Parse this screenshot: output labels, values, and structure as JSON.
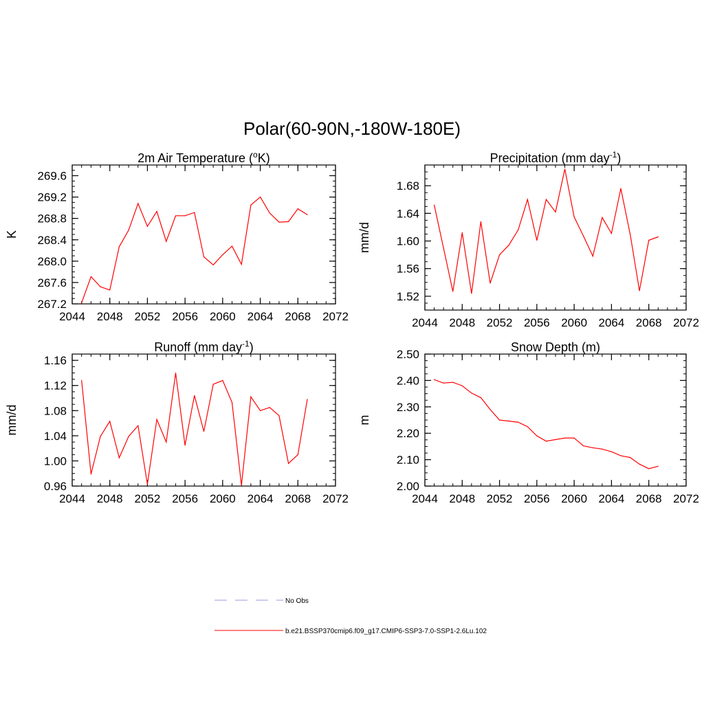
{
  "figure": {
    "title": "Polar(60-90N,-180W-180E)"
  },
  "chart_data": [
    {
      "type": "line",
      "title": "2m Air Temperature (°K)",
      "title_parts": {
        "pre": "2m Air Temperature (",
        "sup": "o",
        "post": "K)"
      },
      "ylabel": "K",
      "xlim": [
        2044,
        2072
      ],
      "ylim": [
        267.2,
        269.8
      ],
      "xticks": [
        2044,
        2048,
        2052,
        2056,
        2060,
        2064,
        2068,
        2072
      ],
      "xtick_labels": [
        "2044",
        "2048",
        "2052",
        "2056",
        "2060",
        "2064",
        "2068",
        "2072"
      ],
      "yticks": [
        267.2,
        267.6,
        268.0,
        268.4,
        268.8,
        269.2,
        269.6
      ],
      "ytick_labels": [
        "267.2",
        "267.6",
        "268.0",
        "268.4",
        "268.8",
        "269.2",
        "269.6"
      ],
      "color": "#ff0000",
      "x": [
        2045,
        2046,
        2047,
        2048,
        2049,
        2050,
        2051,
        2052,
        2053,
        2054,
        2055,
        2056,
        2057,
        2058,
        2059,
        2060,
        2061,
        2062,
        2063,
        2064,
        2065,
        2066,
        2067,
        2068,
        2069
      ],
      "y": [
        267.22,
        267.71,
        267.52,
        267.46,
        268.27,
        268.58,
        269.08,
        268.65,
        268.93,
        268.37,
        268.85,
        268.85,
        268.91,
        268.08,
        267.93,
        268.12,
        268.28,
        267.94,
        269.05,
        269.2,
        268.9,
        268.73,
        268.74,
        268.98,
        268.87
      ]
    },
    {
      "type": "line",
      "title": "Precipitation (mm day-1)",
      "title_parts": {
        "pre": "Precipitation (mm day",
        "sup": "-1",
        "post": ")"
      },
      "ylabel": "mm/d",
      "xlim": [
        2044,
        2072
      ],
      "ylim": [
        1.5,
        1.71
      ],
      "xticks": [
        2044,
        2048,
        2052,
        2056,
        2060,
        2064,
        2068,
        2072
      ],
      "xtick_labels": [
        "2044",
        "2048",
        "2052",
        "2056",
        "2060",
        "2064",
        "2068",
        "2072"
      ],
      "yticks": [
        1.52,
        1.56,
        1.6,
        1.64,
        1.68
      ],
      "ytick_labels": [
        "1.52",
        "1.56",
        "1.60",
        "1.64",
        "1.68"
      ],
      "color": "#ff0000",
      "x": [
        2045,
        2046,
        2047,
        2048,
        2049,
        2050,
        2051,
        2052,
        2053,
        2054,
        2055,
        2056,
        2057,
        2058,
        2059,
        2060,
        2061,
        2062,
        2063,
        2064,
        2065,
        2066,
        2067,
        2068,
        2069
      ],
      "y": [
        1.652,
        1.59,
        1.527,
        1.612,
        1.524,
        1.628,
        1.539,
        1.58,
        1.594,
        1.616,
        1.66,
        1.601,
        1.66,
        1.642,
        1.704,
        1.635,
        1.607,
        1.578,
        1.634,
        1.611,
        1.676,
        1.61,
        1.528,
        1.601,
        1.606
      ]
    },
    {
      "type": "line",
      "title": "Runoff (mm day-1)",
      "title_parts": {
        "pre": "Runoff (mm day",
        "sup": "-1",
        "post": ")"
      },
      "ylabel": "mm/d",
      "xlim": [
        2044,
        2072
      ],
      "ylim": [
        0.96,
        1.17
      ],
      "xticks": [
        2044,
        2048,
        2052,
        2056,
        2060,
        2064,
        2068,
        2072
      ],
      "xtick_labels": [
        "2044",
        "2048",
        "2052",
        "2056",
        "2060",
        "2064",
        "2068",
        "2072"
      ],
      "yticks": [
        0.96,
        1.0,
        1.04,
        1.08,
        1.12,
        1.16
      ],
      "ytick_labels": [
        "0.96",
        "1.00",
        "1.04",
        "1.08",
        "1.12",
        "1.16"
      ],
      "color": "#ff0000",
      "x": [
        2045,
        2046,
        2047,
        2048,
        2049,
        2050,
        2051,
        2052,
        2053,
        2054,
        2055,
        2056,
        2057,
        2058,
        2059,
        2060,
        2061,
        2062,
        2063,
        2064,
        2065,
        2066,
        2067,
        2068,
        2069
      ],
      "y": [
        1.128,
        0.979,
        1.039,
        1.063,
        1.005,
        1.039,
        1.056,
        0.963,
        1.066,
        1.03,
        1.14,
        1.025,
        1.104,
        1.047,
        1.122,
        1.128,
        1.093,
        0.961,
        1.102,
        1.08,
        1.085,
        1.072,
        0.996,
        1.01,
        1.098
      ]
    },
    {
      "type": "line",
      "title": "Snow Depth (m)",
      "title_parts": {
        "pre": "Snow Depth (m)",
        "sup": "",
        "post": ""
      },
      "ylabel": "m",
      "xlim": [
        2044,
        2072
      ],
      "ylim": [
        2.0,
        2.5
      ],
      "xticks": [
        2044,
        2048,
        2052,
        2056,
        2060,
        2064,
        2068,
        2072
      ],
      "xtick_labels": [
        "2044",
        "2048",
        "2052",
        "2056",
        "2060",
        "2064",
        "2068",
        "2072"
      ],
      "yticks": [
        2.0,
        2.1,
        2.2,
        2.3,
        2.4,
        2.5
      ],
      "ytick_labels": [
        "2.00",
        "2.10",
        "2.20",
        "2.30",
        "2.40",
        "2.50"
      ],
      "color": "#ff0000",
      "x": [
        2045,
        2046,
        2047,
        2048,
        2049,
        2050,
        2051,
        2052,
        2053,
        2054,
        2055,
        2056,
        2057,
        2058,
        2059,
        2060,
        2061,
        2062,
        2063,
        2064,
        2065,
        2066,
        2067,
        2068,
        2069
      ],
      "y": [
        2.403,
        2.39,
        2.393,
        2.38,
        2.352,
        2.335,
        2.29,
        2.25,
        2.246,
        2.242,
        2.225,
        2.19,
        2.17,
        2.176,
        2.182,
        2.182,
        2.152,
        2.145,
        2.14,
        2.13,
        2.115,
        2.108,
        2.083,
        2.066,
        2.075
      ]
    }
  ],
  "legend": {
    "items": [
      {
        "label": "No Obs",
        "style": "dashed",
        "color": "#9999dd"
      },
      {
        "label": "b.e21.BSSP370cmip6.f09_g17.CMIP6-SSP3-7.0-SSP1-2.6Lu.102",
        "style": "solid",
        "color": "#ff0000"
      }
    ]
  }
}
